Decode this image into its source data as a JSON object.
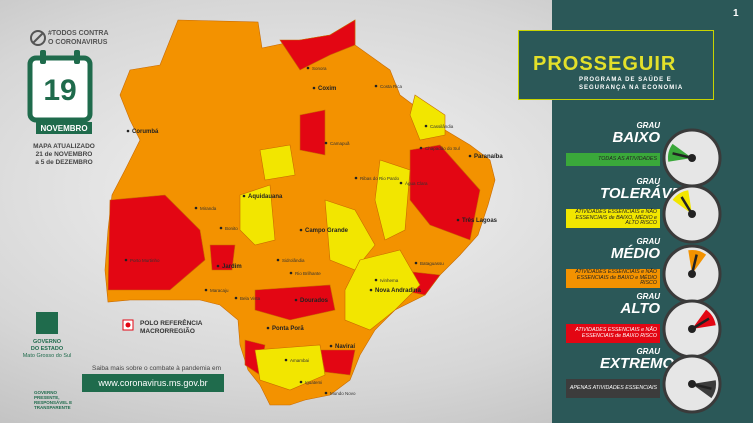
{
  "page_number": "1",
  "campaign": {
    "line1": "#TODOS CONTRA",
    "line2": "O CORONAVIRUS"
  },
  "calendar": {
    "day": "19",
    "month": "NOVEMBRO"
  },
  "update_note": {
    "line1": "MAPA ATUALIZADO",
    "line2": "21 de NOVEMBRO",
    "line3": "a 5 de DEZEMBRO"
  },
  "map": {
    "cities": [
      "Corumbá",
      "Coxim",
      "Aquidauana",
      "Campo Grande",
      "Jardim",
      "Dourados",
      "Nova Andradina",
      "Naviraí",
      "Três Lagoas",
      "Paranaíba",
      "Ponta Porã",
      "Bonito",
      "Sonora",
      "Costa Rica",
      "Cassilândia",
      "Água Clara",
      "Ribas do Rio Pardo",
      "Maracaju",
      "Rio Brilhante",
      "Amambai",
      "Iguatemi",
      "Mundo Novo",
      "Bataguassu",
      "Chapadão do Sul",
      "Camapuã",
      "Sidrolândia",
      "Miranda",
      "Porto Murtinho",
      "Bela Vista",
      "Ivinhema"
    ]
  },
  "legend": {
    "label_line1": "POLO REFERÊNCIA",
    "label_line2": "MACRORREGIÃO"
  },
  "footer": {
    "prompt": "Saiba mais sobre o combate à pandemia em",
    "url": "www.coronavirus.ms.gov.br"
  },
  "government": {
    "name_line1": "GOVERNO",
    "name_line2": "DO ESTADO",
    "state": "Mato Grosso do Sul",
    "slogan_line1": "GOVERNO",
    "slogan_line2": "PRESENTE,",
    "slogan_line3": "RESPONSÁVEL E",
    "slogan_line4": "TRANSPARENTE"
  },
  "program": {
    "title": "PROSSEGUIR",
    "subtitle_line1": "PROGRAMA DE SAÚDE E",
    "subtitle_line2": "SEGURANÇA NA ECONOMIA"
  },
  "levels": [
    {
      "grau": "GRAU",
      "name": "BAIXO",
      "description": "TODAS AS ATIVIDADES",
      "color": "#3aa83a"
    },
    {
      "grau": "GRAU",
      "name": "TOLERÁVEL",
      "description": "ATIVIDADES ESSENCIAIS e NÃO ESSENCIAIS de BAIXO, MÉDIO e ALTO RISCO",
      "color": "#f2e600"
    },
    {
      "grau": "GRAU",
      "name": "MÉDIO",
      "description": "ATIVIDADES ESSENCIAIS e NÃO ESSENCIAIS de BAIXO e MÉDIO RISCO",
      "color": "#f39200"
    },
    {
      "grau": "GRAU",
      "name": "ALTO",
      "description": "ATIVIDADES ESSENCIAIS e NÃO ESSENCIAIS de BAIXO RISCO",
      "color": "#e30613"
    },
    {
      "grau": "GRAU",
      "name": "EXTREMO",
      "description": "APENAS ATIVIDADES ESSENCIAIS",
      "color": "#3c3c3c"
    }
  ]
}
